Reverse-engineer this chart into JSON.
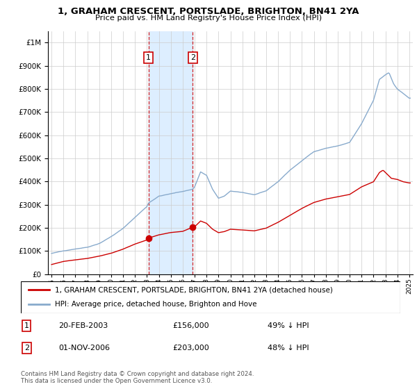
{
  "title": "1, GRAHAM CRESCENT, PORTSLADE, BRIGHTON, BN41 2YA",
  "subtitle": "Price paid vs. HM Land Registry's House Price Index (HPI)",
  "sale1_date": "20-FEB-2003",
  "sale1_price": 156000,
  "sale1_hpi": "49% ↓ HPI",
  "sale2_date": "01-NOV-2006",
  "sale2_price": 203000,
  "sale2_hpi": "48% ↓ HPI",
  "legend_property": "1, GRAHAM CRESCENT, PORTSLADE, BRIGHTON, BN41 2YA (detached house)",
  "legend_hpi": "HPI: Average price, detached house, Brighton and Hove",
  "footnote": "Contains HM Land Registry data © Crown copyright and database right 2024.\nThis data is licensed under the Open Government Licence v3.0.",
  "property_color": "#cc0000",
  "hpi_color": "#88aacc",
  "shade_color": "#ddeeff",
  "ylim_min": 0,
  "ylim_max": 1000000,
  "ylabel_ticks": [
    0,
    100000,
    200000,
    300000,
    400000,
    500000,
    600000,
    700000,
    800000,
    900000,
    1000000
  ],
  "sale1_x": 2003.13,
  "sale2_x": 2006.84,
  "xmin": 1995,
  "xmax": 2025
}
